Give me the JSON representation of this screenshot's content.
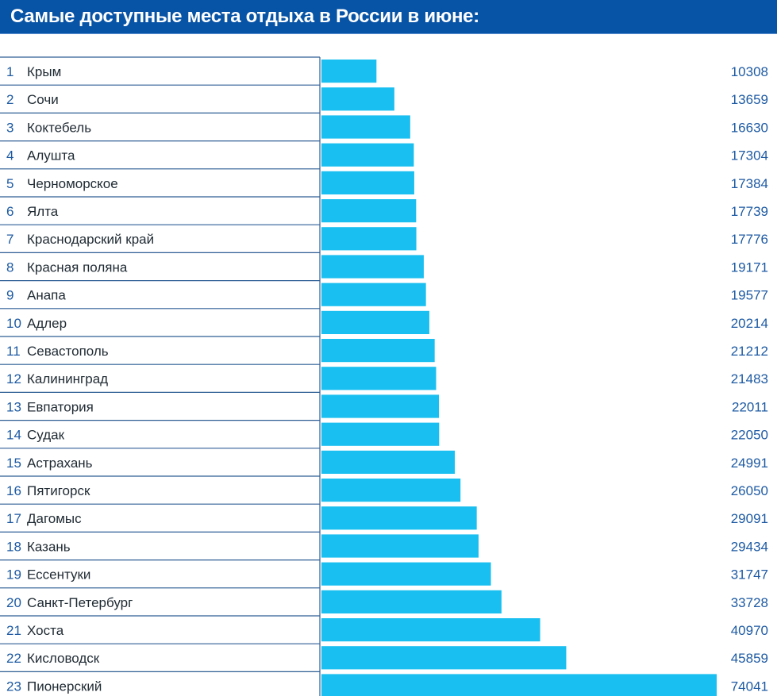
{
  "header": {
    "title": "Самые доступные места отдыха в России в июне:"
  },
  "colors": {
    "title_bg": "#0753a6",
    "bar": "#19bff0",
    "rank_text": "#1d5aa3",
    "value_text": "#1d5aa3",
    "name_text": "#1f2a33",
    "row_line": "#2e5e95"
  },
  "chart_data": {
    "type": "bar",
    "orientation": "horizontal",
    "title": "Самые доступные места отдыха в России в июне:",
    "xlabel": "",
    "ylabel": "",
    "grid": false,
    "legend": "none",
    "xlim": [
      0,
      74041
    ],
    "ranks": [
      "1",
      "2",
      "3",
      "4",
      "5",
      "6",
      "7",
      "8",
      "9",
      "10",
      "11",
      "12",
      "13",
      "14",
      "15",
      "16",
      "17",
      "18",
      "19",
      "20",
      "21",
      "22",
      "23"
    ],
    "categories": [
      "Крым",
      "Сочи",
      "Коктебель",
      "Алушта",
      "Черноморское",
      "Ялта",
      "Краснодарский край",
      "Красная поляна",
      "Анапа",
      "Адлер",
      "Севастополь",
      "Калининград",
      "Евпатория",
      "Судак",
      "Астрахань",
      "Пятигорск",
      "Дагомыс",
      "Казань",
      "Ессентуки",
      "Санкт-Петербург",
      "Хоста",
      "Кисловодск",
      "Пионерский"
    ],
    "values": [
      10308,
      13659,
      16630,
      17304,
      17384,
      17739,
      17776,
      19171,
      19577,
      20214,
      21212,
      21483,
      22011,
      22050,
      24991,
      26050,
      29091,
      29434,
      31747,
      33728,
      40970,
      45859,
      74041
    ]
  }
}
